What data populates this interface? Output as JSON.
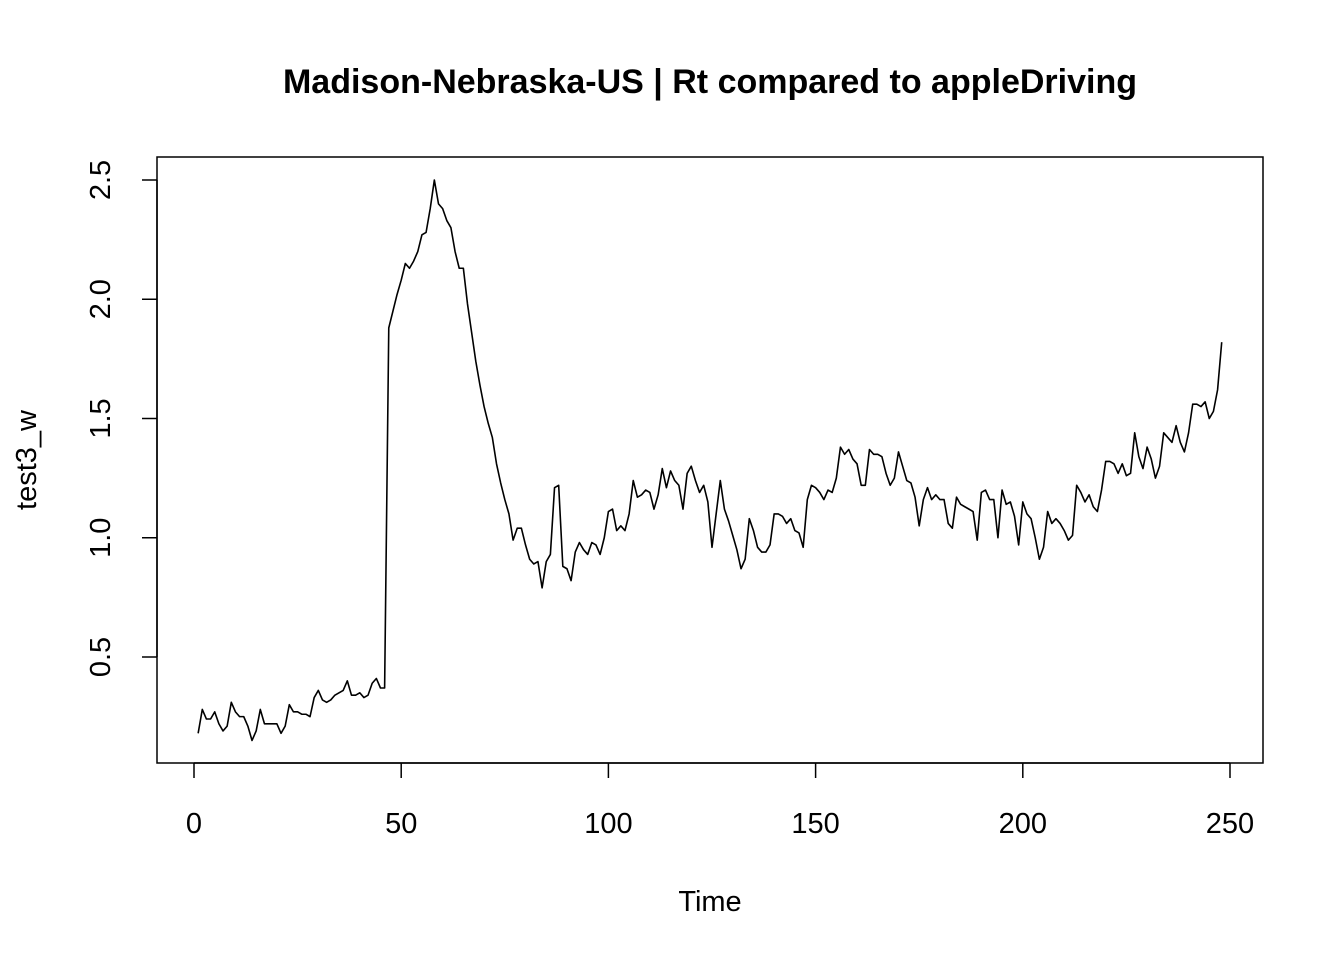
{
  "chart_data": {
    "type": "line",
    "title": "Madison-Nebraska-US | Rt compared to appleDriving",
    "xlabel": "Time",
    "ylabel": "test3_w",
    "xlim": [
      0,
      250
    ],
    "ylim": [
      0.1,
      2.6
    ],
    "x_ticks": [
      0,
      50,
      100,
      150,
      200,
      250
    ],
    "x_tick_labels": [
      "0",
      "50",
      "100",
      "150",
      "200",
      "250"
    ],
    "y_ticks": [
      0.5,
      1.0,
      1.5,
      2.0,
      2.5
    ],
    "y_tick_labels": [
      "0.5",
      "1.0",
      "1.5",
      "2.0",
      "2.5"
    ],
    "grid": false,
    "legend": "none",
    "line_color": "#000000",
    "series": [
      {
        "x_start": 1,
        "x_step": 1,
        "values": [
          0.18,
          0.28,
          0.24,
          0.24,
          0.27,
          0.22,
          0.19,
          0.21,
          0.31,
          0.27,
          0.25,
          0.25,
          0.21,
          0.15,
          0.19,
          0.28,
          0.22,
          0.22,
          0.22,
          0.22,
          0.18,
          0.21,
          0.3,
          0.27,
          0.27,
          0.26,
          0.26,
          0.25,
          0.33,
          0.36,
          0.32,
          0.31,
          0.32,
          0.34,
          0.35,
          0.36,
          0.4,
          0.34,
          0.34,
          0.35,
          0.33,
          0.34,
          0.39,
          0.41,
          0.37,
          0.37,
          1.88,
          1.95,
          2.02,
          2.08,
          2.15,
          2.13,
          2.16,
          2.2,
          2.27,
          2.28,
          2.38,
          2.5,
          2.4,
          2.38,
          2.33,
          2.3,
          2.2,
          2.13,
          2.13,
          1.98,
          1.86,
          1.74,
          1.64,
          1.55,
          1.48,
          1.42,
          1.31,
          1.23,
          1.16,
          1.1,
          0.99,
          1.04,
          1.04,
          0.97,
          0.91,
          0.89,
          0.9,
          0.79,
          0.9,
          0.93,
          1.21,
          1.22,
          0.88,
          0.87,
          0.82,
          0.94,
          0.98,
          0.95,
          0.93,
          0.98,
          0.97,
          0.93,
          1.0,
          1.11,
          1.12,
          1.03,
          1.05,
          1.03,
          1.1,
          1.24,
          1.17,
          1.18,
          1.2,
          1.19,
          1.12,
          1.18,
          1.29,
          1.21,
          1.28,
          1.24,
          1.22,
          1.12,
          1.27,
          1.3,
          1.24,
          1.19,
          1.22,
          1.15,
          0.96,
          1.1,
          1.24,
          1.12,
          1.07,
          1.01,
          0.95,
          0.87,
          0.91,
          1.08,
          1.03,
          0.96,
          0.94,
          0.94,
          0.97,
          1.1,
          1.1,
          1.09,
          1.06,
          1.08,
          1.03,
          1.02,
          0.96,
          1.16,
          1.22,
          1.21,
          1.19,
          1.16,
          1.2,
          1.19,
          1.25,
          1.38,
          1.35,
          1.37,
          1.33,
          1.31,
          1.22,
          1.22,
          1.37,
          1.35,
          1.35,
          1.34,
          1.27,
          1.22,
          1.25,
          1.36,
          1.3,
          1.24,
          1.23,
          1.17,
          1.05,
          1.16,
          1.21,
          1.16,
          1.18,
          1.16,
          1.16,
          1.06,
          1.04,
          1.17,
          1.14,
          1.13,
          1.12,
          1.11,
          0.99,
          1.19,
          1.2,
          1.16,
          1.16,
          1.0,
          1.2,
          1.14,
          1.15,
          1.09,
          0.97,
          1.15,
          1.1,
          1.08,
          1.0,
          0.91,
          0.96,
          1.11,
          1.06,
          1.08,
          1.06,
          1.03,
          0.99,
          1.01,
          1.22,
          1.19,
          1.15,
          1.18,
          1.13,
          1.11,
          1.2,
          1.32,
          1.32,
          1.31,
          1.27,
          1.31,
          1.26,
          1.27,
          1.44,
          1.34,
          1.29,
          1.38,
          1.33,
          1.25,
          1.3,
          1.44,
          1.42,
          1.4,
          1.47,
          1.4,
          1.36,
          1.44,
          1.56,
          1.56,
          1.55,
          1.57,
          1.5,
          1.53,
          1.62,
          1.82
        ]
      }
    ]
  }
}
